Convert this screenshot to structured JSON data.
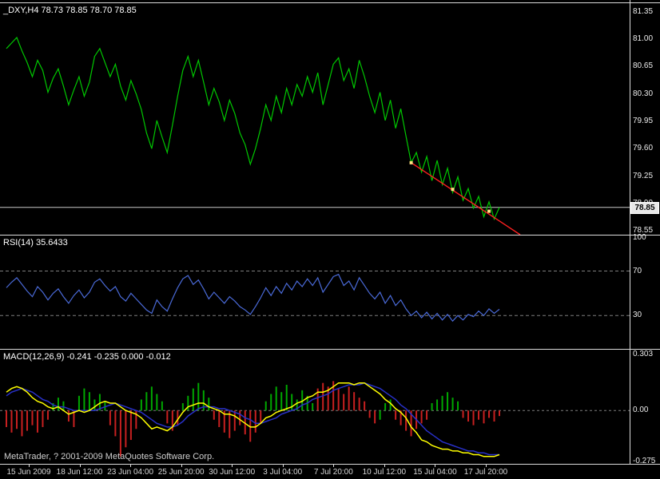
{
  "colors": {
    "background": "#000000",
    "foreground": "#FFFFFF",
    "border": "#DCDCDC",
    "grid_dashed": "#7E7E7E",
    "price_line": "#00C800",
    "current_price_line": "#C8C8C8",
    "trend_line": "#FF2020",
    "trend_marker": "#FFE080",
    "rsi_line": "#4A6AD8",
    "macd_line": "#FFFF00",
    "signal_line": "#2830C8",
    "hist_up": "#00A800",
    "hist_down": "#C82020",
    "price_tag_bg": "#E8E8E8",
    "price_tag_text": "#000000"
  },
  "footer": {
    "credit": "MetaTrader, ? 2001-2009 MetaQuotes Software Corp."
  },
  "chart_data": [
    {
      "type": "line",
      "title": "_DXY,H4 78.73 78.85 78.70 78.85",
      "symbol": "_DXY",
      "timeframe": "H4",
      "ohlc": {
        "open": 78.73,
        "high": 78.85,
        "low": 78.7,
        "close": 78.85
      },
      "current_price": 78.85,
      "current_price_label": "78.85",
      "ylim": [
        78.5,
        81.5
      ],
      "y_ticks": [
        {
          "v": 81.35,
          "label": "81.35"
        },
        {
          "v": 81.0,
          "label": "81.00"
        },
        {
          "v": 80.65,
          "label": "80.65"
        },
        {
          "v": 80.3,
          "label": "80.30"
        },
        {
          "v": 79.95,
          "label": "79.95"
        },
        {
          "v": 79.6,
          "label": "79.60"
        },
        {
          "v": 79.25,
          "label": "79.25"
        },
        {
          "v": 78.9,
          "label": "78.90"
        },
        {
          "v": 78.55,
          "label": "78.55"
        }
      ],
      "x_ticks": [
        "15 Jun 2009",
        "18 Jun 12:00",
        "23 Jun 04:00",
        "25 Jun 20:00",
        "30 Jun 12:00",
        "3 Jul 04:00",
        "7 Jul 20:00",
        "10 Jul 12:00",
        "15 Jul 04:00",
        "17 Jul 20:00"
      ],
      "series": [
        {
          "name": "price",
          "values": [
            80.88,
            80.95,
            81.02,
            80.85,
            80.7,
            80.52,
            80.73,
            80.6,
            80.32,
            80.5,
            80.62,
            80.4,
            80.16,
            80.35,
            80.52,
            80.27,
            80.45,
            80.78,
            80.88,
            80.7,
            80.52,
            80.68,
            80.4,
            80.22,
            80.47,
            80.3,
            80.1,
            79.8,
            79.6,
            79.96,
            79.75,
            79.55,
            79.9,
            80.27,
            80.6,
            80.78,
            80.52,
            80.73,
            80.45,
            80.16,
            80.37,
            80.2,
            79.96,
            80.22,
            80.05,
            79.8,
            79.65,
            79.4,
            79.6,
            79.86,
            80.16,
            79.96,
            80.27,
            80.06,
            80.37,
            80.16,
            80.42,
            80.27,
            80.52,
            80.32,
            80.57,
            80.16,
            80.42,
            80.68,
            80.76,
            80.47,
            80.62,
            80.37,
            80.73,
            80.52,
            80.27,
            80.06,
            80.32,
            79.96,
            80.22,
            79.86,
            80.11,
            79.76,
            79.42,
            79.55,
            79.3,
            79.5,
            79.19,
            79.45,
            79.14,
            79.35,
            79.04,
            79.24,
            78.94,
            79.09,
            78.84,
            78.99,
            78.73,
            78.92,
            78.7,
            78.85
          ]
        }
      ],
      "trendline": {
        "from": {
          "i": 78,
          "v": 79.42
        },
        "to": {
          "i": 99,
          "v": 78.5
        },
        "markers": [
          {
            "i": 78,
            "v": 79.42
          },
          {
            "i": 86,
            "v": 79.08
          },
          {
            "i": 93,
            "v": 78.8
          }
        ]
      }
    },
    {
      "type": "line",
      "title": "RSI(14) 35.6433",
      "indicator": "RSI(14)",
      "current_value": 35.6433,
      "ylim": [
        0,
        102
      ],
      "levels": [
        70,
        30
      ],
      "y_ticks": [
        {
          "v": 100,
          "label": "100"
        },
        {
          "v": 70,
          "label": "70"
        },
        {
          "v": 30,
          "label": "30"
        }
      ],
      "series": [
        {
          "name": "rsi",
          "values": [
            55,
            60,
            64,
            58,
            52,
            47,
            56,
            51,
            44,
            50,
            54,
            47,
            41,
            48,
            53,
            46,
            51,
            60,
            63,
            57,
            52,
            56,
            47,
            43,
            50,
            45,
            40,
            35,
            32,
            44,
            38,
            34,
            45,
            55,
            63,
            66,
            58,
            62,
            54,
            45,
            51,
            46,
            41,
            47,
            43,
            38,
            35,
            31,
            38,
            46,
            55,
            48,
            56,
            50,
            59,
            53,
            61,
            56,
            63,
            57,
            64,
            51,
            58,
            65,
            67,
            57,
            61,
            53,
            64,
            57,
            50,
            45,
            51,
            41,
            48,
            39,
            44,
            36,
            30,
            34,
            28,
            33,
            27,
            32,
            26,
            31,
            25,
            30,
            26,
            31,
            29,
            34,
            30,
            36,
            32,
            35.64
          ]
        }
      ]
    },
    {
      "type": "macd",
      "title": "MACD(12,26,9) -0.241 -0.235 0.000 -0.012",
      "indicator": "MACD(12,26,9)",
      "current_values": [
        -0.241,
        -0.235,
        0.0,
        -0.012
      ],
      "ylim": [
        -0.29,
        0.331
      ],
      "zero_level": 0,
      "y_ticks": [
        {
          "v": 0.303,
          "label": "0.303"
        },
        {
          "v": 0,
          "label": "0.00"
        },
        {
          "v": -0.275,
          "label": "-0.275"
        }
      ],
      "histogram": {
        "values": [
          -0.09,
          -0.12,
          -0.1,
          -0.14,
          -0.11,
          -0.08,
          -0.12,
          -0.09,
          -0.05,
          0.04,
          0.07,
          0.05,
          -0.06,
          -0.09,
          0.08,
          0.12,
          0.1,
          0.06,
          0.09,
          0.05,
          -0.08,
          -0.14,
          -0.25,
          -0.2,
          -0.16,
          -0.1,
          0.06,
          0.1,
          0.13,
          0.09,
          0.05,
          -0.07,
          -0.11,
          -0.08,
          0.04,
          0.08,
          0.12,
          0.15,
          0.11,
          0.07,
          -0.05,
          -0.09,
          -0.12,
          -0.15,
          -0.11,
          -0.08,
          -0.13,
          -0.17,
          -0.12,
          -0.07,
          0.05,
          0.09,
          0.13,
          0.1,
          0.14,
          0.09,
          0.06,
          0.11,
          0.08,
          0.04,
          0.12,
          0.15,
          0.13,
          0.16,
          0.12,
          0.09,
          0.13,
          0.1,
          0.07,
          0.05,
          -0.04,
          -0.07,
          -0.05,
          0.04,
          0.06,
          -0.05,
          -0.08,
          -0.11,
          -0.14,
          -0.1,
          -0.07,
          -0.05,
          0.04,
          0.06,
          0.08,
          0.1,
          0.07,
          0.05,
          -0.04,
          -0.06,
          -0.08,
          -0.05,
          -0.07,
          -0.04,
          -0.06,
          -0.03
        ],
        "colors": [
          "r",
          "r",
          "r",
          "r",
          "r",
          "r",
          "r",
          "r",
          "r",
          "g",
          "g",
          "g",
          "r",
          "r",
          "g",
          "g",
          "g",
          "g",
          "g",
          "g",
          "r",
          "r",
          "r",
          "r",
          "r",
          "r",
          "g",
          "g",
          "g",
          "g",
          "g",
          "r",
          "r",
          "r",
          "g",
          "g",
          "g",
          "g",
          "g",
          "g",
          "r",
          "r",
          "r",
          "r",
          "r",
          "r",
          "r",
          "r",
          "r",
          "r",
          "g",
          "g",
          "g",
          "g",
          "g",
          "g",
          "g",
          "g",
          "g",
          "g",
          "r",
          "r",
          "r",
          "r",
          "r",
          "r",
          "r",
          "r",
          "r",
          "r",
          "r",
          "r",
          "g",
          "g",
          "g",
          "r",
          "r",
          "r",
          "r",
          "r",
          "r",
          "r",
          "g",
          "g",
          "g",
          "g",
          "g",
          "g",
          "r",
          "r",
          "r",
          "r",
          "r",
          "r",
          "r",
          "r"
        ]
      },
      "macd_line": {
        "values": [
          0.1,
          0.12,
          0.13,
          0.12,
          0.1,
          0.07,
          0.05,
          0.04,
          0.02,
          0.01,
          0.02,
          0.0,
          -0.02,
          -0.01,
          0.0,
          -0.01,
          0.0,
          0.02,
          0.04,
          0.05,
          0.04,
          0.04,
          0.02,
          0.0,
          -0.01,
          -0.02,
          -0.04,
          -0.07,
          -0.1,
          -0.09,
          -0.1,
          -0.11,
          -0.09,
          -0.05,
          -0.01,
          0.02,
          0.03,
          0.04,
          0.04,
          0.02,
          0.01,
          0.0,
          -0.02,
          -0.02,
          -0.03,
          -0.05,
          -0.07,
          -0.09,
          -0.09,
          -0.07,
          -0.04,
          -0.03,
          -0.01,
          0.0,
          0.01,
          0.02,
          0.04,
          0.05,
          0.07,
          0.08,
          0.1,
          0.1,
          0.11,
          0.13,
          0.15,
          0.15,
          0.15,
          0.14,
          0.15,
          0.15,
          0.13,
          0.11,
          0.09,
          0.06,
          0.04,
          0.01,
          -0.01,
          -0.04,
          -0.09,
          -0.12,
          -0.16,
          -0.17,
          -0.19,
          -0.2,
          -0.21,
          -0.21,
          -0.22,
          -0.22,
          -0.23,
          -0.23,
          -0.24,
          -0.24,
          -0.25,
          -0.25,
          -0.25,
          -0.24
        ]
      },
      "signal_line": {
        "values": [
          0.08,
          0.1,
          0.11,
          0.12,
          0.11,
          0.1,
          0.08,
          0.06,
          0.05,
          0.03,
          0.02,
          0.02,
          0.01,
          0.0,
          0.0,
          0.0,
          0.0,
          0.0,
          0.01,
          0.02,
          0.03,
          0.04,
          0.03,
          0.02,
          0.01,
          0.0,
          -0.01,
          -0.03,
          -0.05,
          -0.07,
          -0.08,
          -0.09,
          -0.09,
          -0.08,
          -0.06,
          -0.03,
          -0.01,
          0.01,
          0.02,
          0.02,
          0.02,
          0.01,
          0.01,
          0.0,
          -0.01,
          -0.02,
          -0.04,
          -0.05,
          -0.07,
          -0.07,
          -0.06,
          -0.05,
          -0.04,
          -0.02,
          -0.01,
          0.0,
          0.01,
          0.03,
          0.04,
          0.06,
          0.07,
          0.08,
          0.09,
          0.11,
          0.12,
          0.13,
          0.14,
          0.14,
          0.14,
          0.15,
          0.14,
          0.13,
          0.12,
          0.1,
          0.08,
          0.06,
          0.03,
          0.01,
          -0.02,
          -0.05,
          -0.08,
          -0.11,
          -0.13,
          -0.15,
          -0.17,
          -0.18,
          -0.19,
          -0.2,
          -0.21,
          -0.22,
          -0.22,
          -0.23,
          -0.23,
          -0.24,
          -0.24,
          -0.24
        ]
      }
    }
  ]
}
